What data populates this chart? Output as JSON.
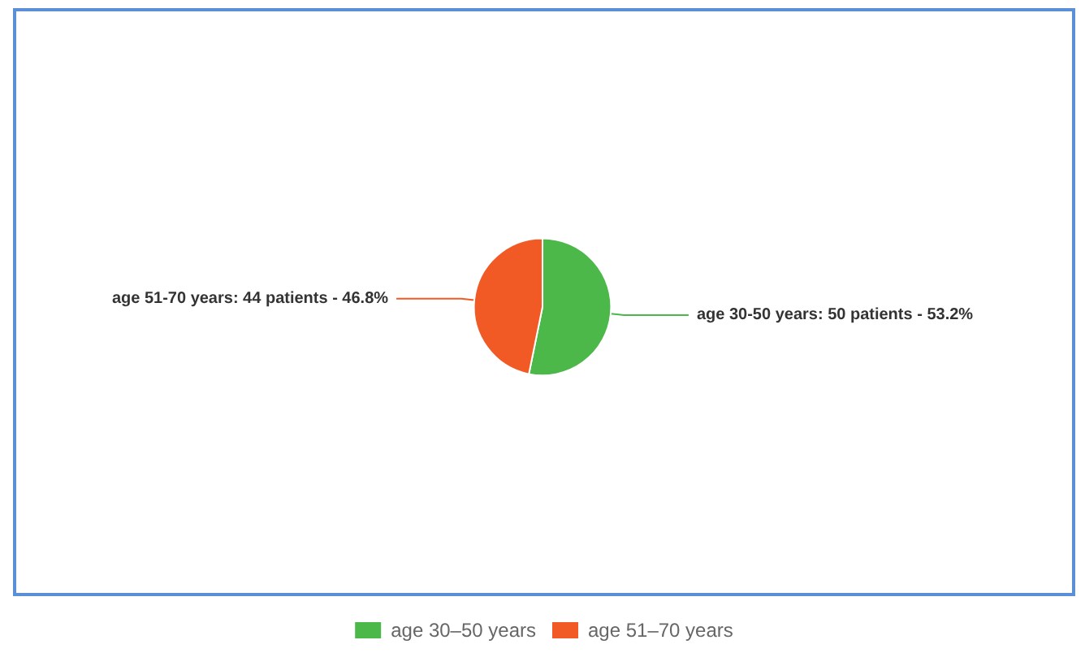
{
  "chart_data": {
    "type": "pie",
    "categories": [
      "age 30–50 years",
      "age 51–70 years"
    ],
    "values": [
      50,
      44
    ],
    "colors": [
      "#4cb84a",
      "#f15a24"
    ],
    "value_labels": [
      "age 30-50 years: 50 patients - 53.2%",
      "age 51-70 years: 44 patients - 46.8%"
    ],
    "legend": "bottom"
  }
}
